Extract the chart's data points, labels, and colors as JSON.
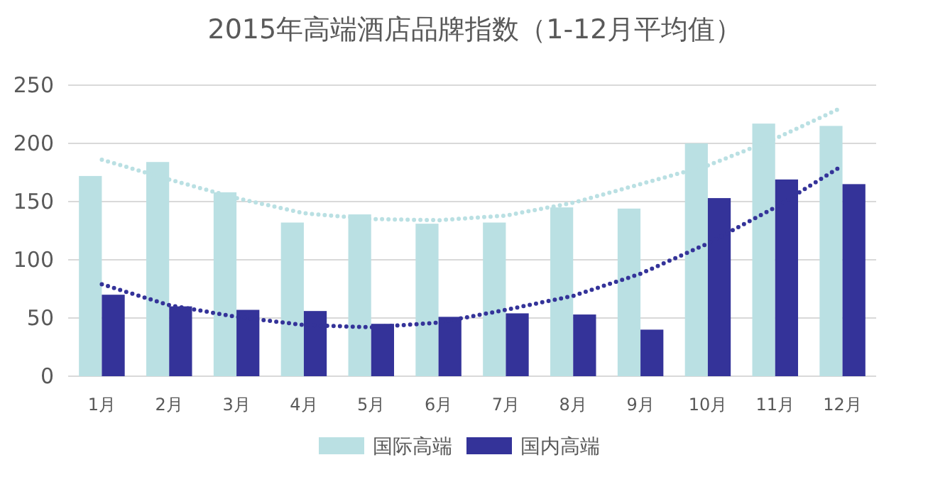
{
  "chart_data": {
    "type": "bar",
    "title": "2015年高端酒店品牌指数（1-12月平均值）",
    "categories": [
      "1月",
      "2月",
      "3月",
      "4月",
      "5月",
      "6月",
      "7月",
      "8月",
      "9月",
      "10月",
      "11月",
      "12月"
    ],
    "series": [
      {
        "name": "国际高端",
        "color": "#bae0e3",
        "values": [
          172,
          184,
          158,
          132,
          139,
          131,
          132,
          145,
          144,
          200,
          217,
          215
        ]
      },
      {
        "name": "国内高端",
        "color": "#343399",
        "values": [
          70,
          60,
          57,
          56,
          45,
          51,
          54,
          53,
          40,
          153,
          169,
          165
        ]
      },
      {
        "type": "line",
        "color": "#bae0e3",
        "line_style": "dotted",
        "values": [
          186,
          169,
          153,
          140,
          135,
          134,
          138,
          149,
          165,
          181,
          204,
          231
        ]
      },
      {
        "type": "line",
        "color": "#343399",
        "line_style": "dotted",
        "values": [
          79,
          61,
          51,
          44,
          42,
          46,
          57,
          69,
          88,
          114,
          145,
          181
        ]
      }
    ],
    "ylim": [
      0,
      250
    ],
    "yticks": [
      0,
      50,
      100,
      150,
      200,
      250
    ],
    "grid": "y",
    "legend": "bottom"
  }
}
